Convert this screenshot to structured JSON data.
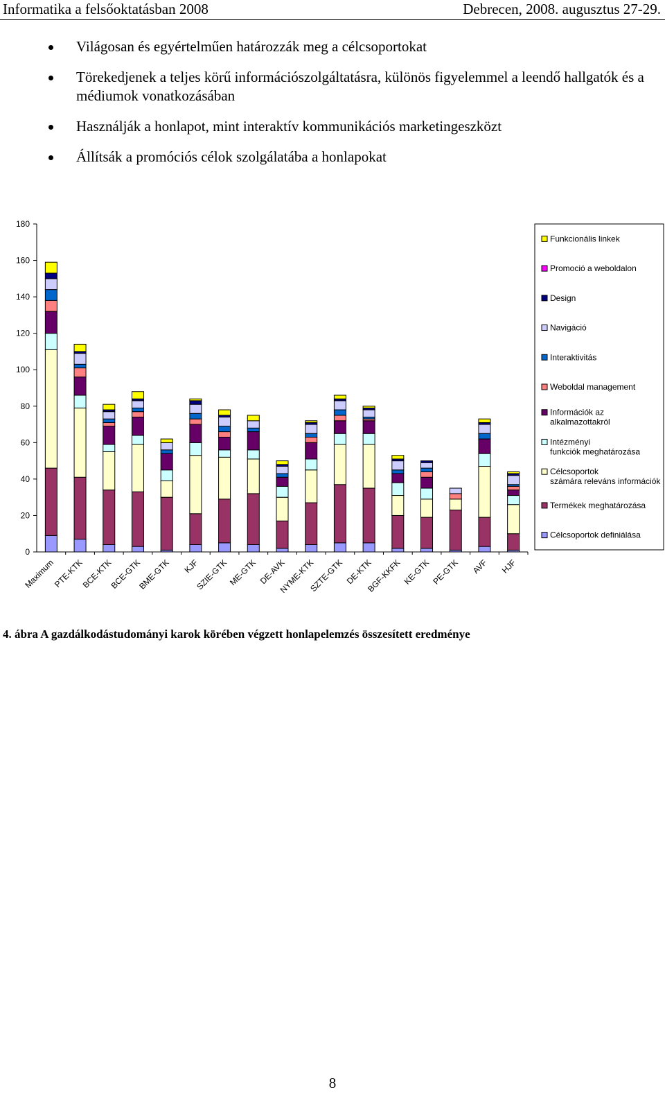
{
  "header": {
    "left": "Informatika a felsőoktatásban 2008",
    "right": "Debrecen, 2008. augusztus 27-29."
  },
  "bullets": [
    "Világosan és egyértelműen határozzák meg a célcsoportokat",
    "Törekedjenek a teljes körű információszolgáltatásra, különös figyelemmel a leendő hallgatók és a médiumok vonatkozásában",
    "Használják a honlapot, mint interaktív kommunikációs marketingeszközt",
    "Állítsák a promóciós célok szolgálatába a honlapokat"
  ],
  "chart_data": {
    "type": "bar",
    "stacked": true,
    "title": "",
    "xlabel": "",
    "ylabel": "",
    "ylim": [
      0,
      180
    ],
    "yticks": [
      0,
      20,
      40,
      60,
      80,
      100,
      120,
      140,
      160,
      180
    ],
    "categories": [
      "Maximum",
      "PTE-KTK",
      "BCE-KTK",
      "BCE-GTK",
      "BME-GTK",
      "KJF",
      "SZIE-GTK",
      "ME-GTK",
      "DE-AVK",
      "NYME-KTK",
      "SZTE-GTK",
      "DE-KTK",
      "BGF-KKFK",
      "KE-GTK",
      "PE-GTK",
      "AVF",
      "HJF"
    ],
    "legend_position": "right",
    "series": [
      {
        "name": "Célcsoportok definiálása",
        "color": "#9999FF",
        "values": [
          9,
          7,
          4,
          3,
          1,
          4,
          5,
          4,
          2,
          4,
          5,
          5,
          2,
          2,
          1,
          3,
          1
        ]
      },
      {
        "name": "Termékek meghatározása",
        "color": "#993366",
        "values": [
          37,
          34,
          30,
          30,
          29,
          17,
          24,
          28,
          15,
          23,
          32,
          30,
          18,
          17,
          22,
          16,
          9
        ]
      },
      {
        "name": "Célcsoportok számára releváns információk",
        "color": "#FFFFCC",
        "values": [
          65,
          38,
          21,
          26,
          9,
          32,
          23,
          19,
          13,
          18,
          22,
          24,
          11,
          10,
          6,
          28,
          16
        ]
      },
      {
        "name": "Intézményi funkciók meghatározása",
        "color": "#CCFFFF",
        "values": [
          9,
          7,
          4,
          5,
          6,
          7,
          4,
          5,
          6,
          6,
          6,
          6,
          7,
          6,
          0,
          7,
          5
        ]
      },
      {
        "name": "Információk az alkalmazottakról",
        "color": "#660066",
        "values": [
          12,
          10,
          10,
          10,
          9,
          10,
          7,
          10,
          5,
          9,
          7,
          7,
          5,
          6,
          0,
          8,
          3
        ]
      },
      {
        "name": "Weboldal management",
        "color": "#FF8080",
        "values": [
          6,
          5,
          2,
          3,
          0,
          3,
          3,
          0,
          0,
          3,
          3,
          1,
          0,
          3,
          3,
          0,
          2
        ]
      },
      {
        "name": "Interaktivitás",
        "color": "#0066CC",
        "values": [
          6,
          2,
          2,
          2,
          2,
          3,
          3,
          2,
          2,
          2,
          3,
          1,
          2,
          2,
          0,
          3,
          1
        ]
      },
      {
        "name": "Navigáció",
        "color": "#CCCCFF",
        "values": [
          6,
          6,
          4,
          4,
          4,
          5,
          5,
          4,
          4,
          5,
          5,
          4,
          5,
          3,
          3,
          5,
          5
        ]
      },
      {
        "name": "Design",
        "color": "#000080",
        "values": [
          3,
          1,
          1,
          1,
          0,
          2,
          1,
          0,
          1,
          1,
          1,
          1,
          1,
          1,
          0,
          1,
          1
        ]
      },
      {
        "name": "Promoció a weboldalon",
        "color": "#FF00FF",
        "values": [
          0,
          0,
          0,
          0,
          0,
          0,
          0,
          0,
          0,
          0,
          0,
          0,
          0,
          0,
          0,
          0,
          0
        ]
      },
      {
        "name": "Funkcionális linkek",
        "color": "#FFFF00",
        "values": [
          6,
          4,
          3,
          4,
          2,
          1,
          3,
          3,
          2,
          1,
          2,
          1,
          2,
          0,
          0,
          2,
          1
        ]
      }
    ]
  },
  "caption": "4. ábra A gazdálkodástudományi karok körében végzett honlapelemzés összesített eredménye",
  "page_number": "8"
}
